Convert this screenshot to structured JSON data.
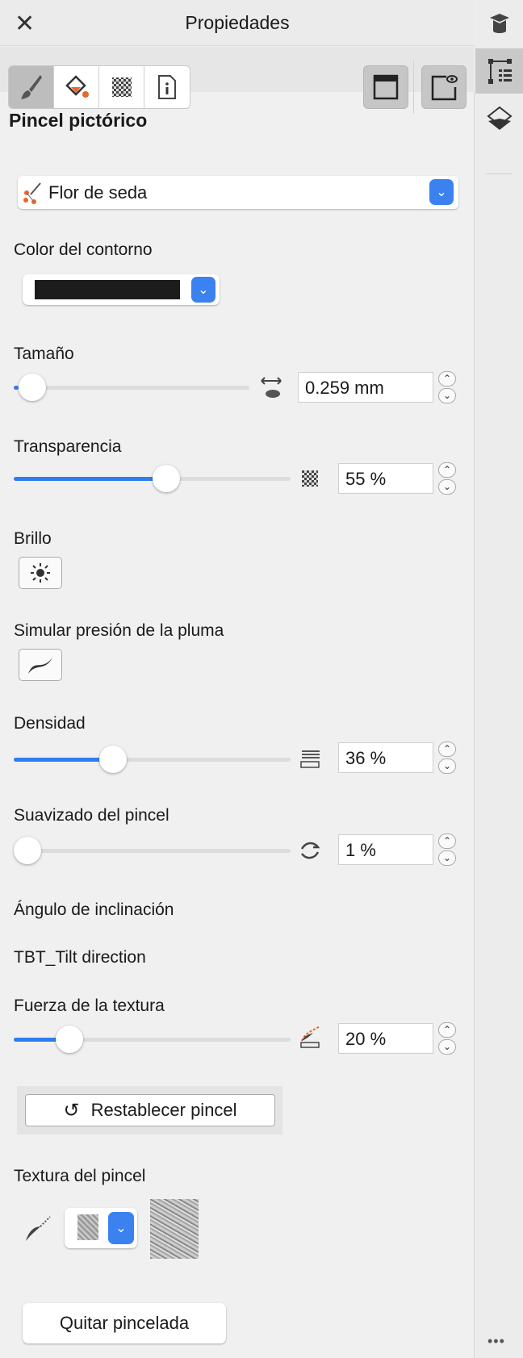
{
  "title": "Propiedades",
  "section_title": "Pincel pictórico",
  "brush_preset": {
    "value": "Flor de seda"
  },
  "outline_color": {
    "label": "Color del contorno",
    "color": "#1c1c1c"
  },
  "size": {
    "label": "Tamaño",
    "value": "0.259 mm",
    "slider_fraction": 0.02
  },
  "transparency": {
    "label": "Transparencia",
    "value": "55 %",
    "slider_fraction": 0.55
  },
  "brightness": {
    "label": "Brillo"
  },
  "pressure": {
    "label": "Simular presión de la pluma"
  },
  "density": {
    "label": "Densidad",
    "value": "36 %",
    "slider_fraction": 0.36
  },
  "smoothing": {
    "label": "Suavizado del pincel",
    "value": "1 %",
    "slider_fraction": 0.0
  },
  "tilt_angle": {
    "label": "Ángulo de inclinación"
  },
  "tilt_direction": {
    "label": "TBT_Tilt direction"
  },
  "texture_strength": {
    "label": "Fuerza de la textura",
    "value": "20 %",
    "slider_fraction": 0.2
  },
  "reset_button": "Restablecer pincel",
  "brush_texture": {
    "label": "Textura del pincel"
  },
  "remove_button": "Quitar pincelada",
  "colors": {
    "accent": "#2f7ef0",
    "orange": "#e8672a"
  },
  "icons": [
    "close-icon",
    "brush-icon",
    "fill-icon",
    "transparency-icon",
    "info-icon",
    "frame-icon",
    "preview-icon",
    "hints-icon",
    "object-properties-icon",
    "layers-icon",
    "more-icon"
  ]
}
